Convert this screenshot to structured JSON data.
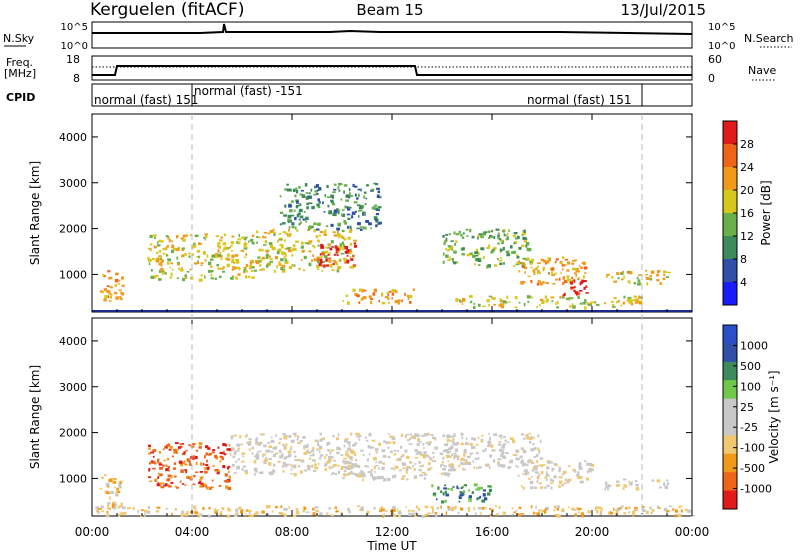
{
  "header": {
    "station": "Kerguelen (fitACF)",
    "beam": "Beam 15",
    "date": "13/Jul/2015"
  },
  "noise_panel": {
    "left_label": "N.Sky",
    "right_label": "N.Search",
    "tick_hi": "10^5",
    "tick_lo": "10^0",
    "right_tick_hi": "10^5",
    "right_tick_lo": "10^0"
  },
  "freq_panel": {
    "left_label_1": "Freq.",
    "left_label_2": "[MHz]",
    "right_label": "Nave",
    "left_ticks": [
      "18",
      "8"
    ],
    "right_ticks": [
      "60",
      "0"
    ]
  },
  "cpid_panel": {
    "label": "CPID",
    "segments": [
      "normal (fast) 151",
      "normal (fast) -151",
      "normal (fast) 151"
    ]
  },
  "colors": {
    "power_scale": [
      "#1a1aff",
      "#2f4fa8",
      "#3d8a5a",
      "#6ab04a",
      "#d8c81c",
      "#f09a1a",
      "#f0641a",
      "#e01a1a"
    ],
    "velocity_scale": [
      "#e01a1a",
      "#f0641a",
      "#f09a1a",
      "#f0c870",
      "#c8c8c8",
      "#c8c8c8",
      "#70c84a",
      "#3d8a5a",
      "#2f4fa8",
      "#2a4fc8"
    ]
  },
  "chart_data": [
    {
      "type": "heatmap",
      "name": "power",
      "ylabel": "Slant Range [km]",
      "y_ticks": [
        1000,
        2000,
        3000,
        4000
      ],
      "ylim": [
        180,
        4500
      ],
      "xlim_hours": [
        0,
        24
      ],
      "colorbar_label": "Power [dB]",
      "colorbar_ticks": [
        "4",
        "8",
        "12",
        "16",
        "20",
        "24",
        "28"
      ],
      "scatter_regions": [
        {
          "t0": 0.3,
          "t1": 1.2,
          "r0": 400,
          "r1": 1100,
          "level": 5
        },
        {
          "t0": 2.2,
          "t1": 6.5,
          "r0": 900,
          "r1": 1900,
          "level": 4
        },
        {
          "t0": 6.5,
          "t1": 10.5,
          "r0": 1100,
          "r1": 2000,
          "level": 4
        },
        {
          "t0": 9.0,
          "t1": 10.5,
          "r0": 1200,
          "r1": 1700,
          "level": 7
        },
        {
          "t0": 7.5,
          "t1": 11.5,
          "r0": 2000,
          "r1": 3000,
          "level": 2
        },
        {
          "t0": 14.0,
          "t1": 17.5,
          "r0": 1200,
          "r1": 2000,
          "level": 3
        },
        {
          "t0": 17.0,
          "t1": 19.8,
          "r0": 800,
          "r1": 1400,
          "level": 5
        },
        {
          "t0": 18.8,
          "t1": 19.8,
          "r0": 500,
          "r1": 900,
          "level": 7
        },
        {
          "t0": 20.5,
          "t1": 23.0,
          "r0": 800,
          "r1": 1100,
          "level": 4
        },
        {
          "t0": 10.0,
          "t1": 13.0,
          "r0": 400,
          "r1": 700,
          "level": 5
        },
        {
          "t0": 14.5,
          "t1": 22.0,
          "r0": 300,
          "r1": 550,
          "level": 4
        }
      ]
    },
    {
      "type": "heatmap",
      "name": "velocity",
      "ylabel": "Slant Range [km]",
      "y_ticks": [
        1000,
        2000,
        3000,
        4000
      ],
      "ylim": [
        180,
        4500
      ],
      "x_ticks": [
        "00:00",
        "04:00",
        "08:00",
        "12:00",
        "16:00",
        "20:00",
        "00:00"
      ],
      "xlabel": "Time UT",
      "xlim_hours": [
        0,
        24
      ],
      "colorbar_label": "Velocity [m s⁻¹]",
      "colorbar_ticks": [
        "1000",
        "500",
        "100",
        "25",
        "-25",
        "-100",
        "-500",
        "-1000"
      ],
      "scatter_regions": [
        {
          "t0": 0.3,
          "t1": 1.2,
          "r0": 400,
          "r1": 1100,
          "level": 3
        },
        {
          "t0": 2.2,
          "t1": 5.5,
          "r0": 800,
          "r1": 1800,
          "level": 1
        },
        {
          "t0": 5.5,
          "t1": 10.5,
          "r0": 1100,
          "r1": 2000,
          "level": 4
        },
        {
          "t0": 10.0,
          "t1": 14.5,
          "r0": 1000,
          "r1": 2000,
          "level": 4
        },
        {
          "t0": 14.0,
          "t1": 18.0,
          "r0": 1200,
          "r1": 2000,
          "level": 4
        },
        {
          "t0": 17.0,
          "t1": 20.0,
          "r0": 800,
          "r1": 1400,
          "level": 4
        },
        {
          "t0": 20.5,
          "t1": 23.0,
          "r0": 800,
          "r1": 1000,
          "level": 4
        },
        {
          "t0": 13.5,
          "t1": 16.0,
          "r0": 500,
          "r1": 900,
          "level": 7
        },
        {
          "t0": 0.0,
          "t1": 24.0,
          "r0": 200,
          "r1": 420,
          "level": 3
        }
      ]
    }
  ]
}
